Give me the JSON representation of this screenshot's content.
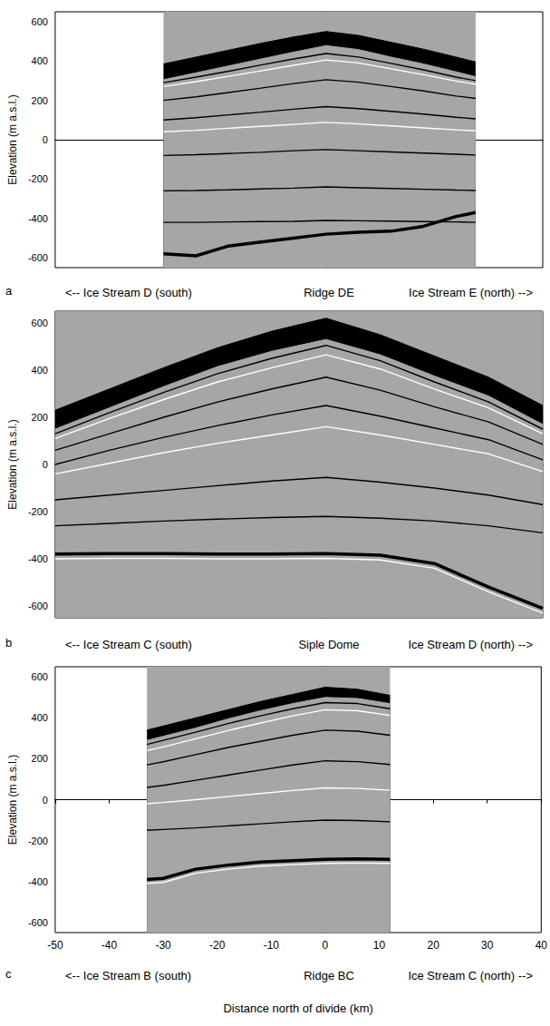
{
  "chart_data": [
    {
      "type": "line",
      "panel": "a",
      "ylabel": "Elevation (m a.s.l.)",
      "annotations": [
        "<-- Ice Stream D (south)",
        "Ridge DE",
        "Ice Stream E (north) -->"
      ],
      "xlim": [
        -50,
        40
      ],
      "ylim": [
        -650,
        650
      ],
      "yticks": [
        -600,
        -400,
        -200,
        0,
        200,
        400,
        600
      ],
      "tick_labels": "y",
      "grid": false,
      "x": [
        -30,
        -24,
        -18,
        -12,
        -6,
        0,
        6,
        12,
        18,
        24,
        27.6
      ],
      "series": [
        {
          "type": "area",
          "color": "#000000",
          "values": [
            385,
            420,
            455,
            490,
            522,
            550,
            530,
            495,
            460,
            420,
            395
          ]
        },
        {
          "type": "area",
          "color": "#a6a6a6",
          "values": [
            305,
            340,
            375,
            410,
            445,
            478,
            458,
            420,
            385,
            345,
            320
          ]
        },
        {
          "type": "line",
          "color": "#000000",
          "values": [
            290,
            318,
            348,
            380,
            410,
            438,
            420,
            388,
            355,
            318,
            300
          ]
        },
        {
          "type": "line",
          "color": "#ffffff",
          "values": [
            270,
            295,
            322,
            350,
            378,
            405,
            390,
            360,
            330,
            298,
            282
          ]
        },
        {
          "type": "line",
          "color": "#000000",
          "values": [
            200,
            218,
            240,
            262,
            285,
            305,
            292,
            270,
            248,
            222,
            210
          ]
        },
        {
          "type": "line",
          "color": "#000000",
          "values": [
            100,
            112,
            126,
            140,
            155,
            168,
            158,
            144,
            130,
            114,
            106
          ]
        },
        {
          "type": "line",
          "color": "#ffffff",
          "values": [
            40,
            48,
            58,
            68,
            78,
            88,
            80,
            70,
            60,
            50,
            45
          ]
        },
        {
          "type": "line",
          "color": "#000000",
          "values": [
            -80,
            -76,
            -70,
            -64,
            -56,
            -50,
            -56,
            -62,
            -68,
            -74,
            -78
          ]
        },
        {
          "type": "line",
          "color": "#000000",
          "values": [
            -260,
            -258,
            -255,
            -250,
            -246,
            -240,
            -244,
            -248,
            -252,
            -256,
            -258
          ]
        },
        {
          "type": "line",
          "color": "#000000",
          "values": [
            -420,
            -420,
            -418,
            -416,
            -415,
            -410,
            -412,
            -414,
            -416,
            -418,
            -420
          ]
        },
        {
          "type": "line",
          "color": "#000000",
          "line_style": "thick",
          "values": [
            -580,
            -590,
            -540,
            -520,
            -500,
            -480,
            -470,
            -465,
            -440,
            -390,
            -370
          ]
        }
      ]
    },
    {
      "type": "line",
      "panel": "b",
      "ylabel": "Elevation (m a.s.l.)",
      "annotations": [
        "<-- Ice Stream C (south)",
        "Siple Dome",
        "Ice Stream D (north) -->"
      ],
      "xlim": [
        -50,
        40
      ],
      "ylim": [
        -650,
        650
      ],
      "yticks": [
        -600,
        -400,
        -200,
        0,
        200,
        400,
        600
      ],
      "tick_labels": "y",
      "grid": false,
      "x": [
        -50,
        -40,
        -30,
        -20,
        -10,
        0,
        10,
        20,
        30,
        40
      ],
      "series": [
        {
          "type": "area",
          "color": "#000000",
          "values": [
            230,
            320,
            410,
            495,
            565,
            620,
            550,
            460,
            370,
            250
          ]
        },
        {
          "type": "area",
          "color": "#a6a6a6",
          "values": [
            150,
            240,
            330,
            415,
            480,
            530,
            465,
            375,
            290,
            170
          ]
        },
        {
          "type": "line",
          "color": "#000000",
          "values": [
            130,
            220,
            305,
            385,
            450,
            505,
            440,
            350,
            265,
            150
          ]
        },
        {
          "type": "line",
          "color": "#ffffff",
          "values": [
            110,
            195,
            275,
            350,
            410,
            465,
            405,
            320,
            240,
            130
          ]
        },
        {
          "type": "line",
          "color": "#000000",
          "values": [
            60,
            130,
            200,
            265,
            320,
            370,
            315,
            245,
            180,
            85
          ]
        },
        {
          "type": "line",
          "color": "#000000",
          "values": [
            0,
            60,
            115,
            165,
            210,
            250,
            205,
            155,
            105,
            20
          ]
        },
        {
          "type": "line",
          "color": "#ffffff",
          "values": [
            -40,
            5,
            50,
            90,
            125,
            160,
            125,
            85,
            45,
            -30
          ]
        },
        {
          "type": "line",
          "color": "#000000",
          "values": [
            -150,
            -130,
            -110,
            -90,
            -70,
            -55,
            -75,
            -100,
            -130,
            -170
          ]
        },
        {
          "type": "line",
          "color": "#000000",
          "values": [
            -260,
            -250,
            -240,
            -232,
            -225,
            -220,
            -228,
            -240,
            -260,
            -290
          ]
        },
        {
          "type": "line",
          "color": "#000000",
          "line_style": "thick",
          "values": [
            -380,
            -378,
            -378,
            -380,
            -380,
            -378,
            -385,
            -420,
            -520,
            -610
          ]
        },
        {
          "type": "line",
          "color": "#ffffff",
          "values": [
            -400,
            -398,
            -398,
            -400,
            -400,
            -398,
            -405,
            -440,
            -540,
            -630
          ]
        }
      ]
    },
    {
      "type": "line",
      "panel": "c",
      "ylabel": "Elevation (m a.s.l.)",
      "xlabel": "Distance north of divide (km)",
      "annotations": [
        "<-- Ice Stream B (south)",
        "Ridge BC",
        "Ice Stream C (north) -->"
      ],
      "xlim": [
        -50,
        40
      ],
      "xticks": [
        -50,
        -40,
        -30,
        -20,
        -10,
        0,
        10,
        20,
        30,
        40
      ],
      "ylim": [
        -650,
        650
      ],
      "yticks": [
        -600,
        -400,
        -200,
        0,
        200,
        400,
        600
      ],
      "grid": false,
      "x": [
        -33,
        -30,
        -24,
        -18,
        -12,
        -6,
        0,
        6,
        12
      ],
      "series": [
        {
          "type": "area",
          "color": "#000000",
          "values": [
            340,
            360,
            400,
            440,
            480,
            515,
            550,
            540,
            510
          ]
        },
        {
          "type": "area",
          "color": "#a6a6a6",
          "values": [
            290,
            310,
            350,
            395,
            435,
            470,
            500,
            495,
            470
          ]
        },
        {
          "type": "line",
          "color": "#000000",
          "values": [
            270,
            290,
            330,
            372,
            410,
            445,
            475,
            470,
            445
          ]
        },
        {
          "type": "line",
          "color": "#ffffff",
          "values": [
            240,
            258,
            298,
            338,
            375,
            410,
            440,
            435,
            412
          ]
        },
        {
          "type": "line",
          "color": "#000000",
          "values": [
            170,
            185,
            220,
            255,
            285,
            315,
            340,
            335,
            315
          ]
        },
        {
          "type": "line",
          "color": "#000000",
          "values": [
            60,
            70,
            95,
            120,
            145,
            170,
            190,
            186,
            172
          ]
        },
        {
          "type": "line",
          "color": "#ffffff",
          "values": [
            -20,
            -14,
            0,
            15,
            30,
            45,
            58,
            55,
            46
          ]
        },
        {
          "type": "line",
          "color": "#000000",
          "values": [
            -150,
            -146,
            -138,
            -128,
            -118,
            -108,
            -100,
            -102,
            -108
          ]
        },
        {
          "type": "line",
          "color": "#000000",
          "line_style": "thick",
          "values": [
            -390,
            -385,
            -340,
            -320,
            -305,
            -298,
            -292,
            -290,
            -292
          ]
        },
        {
          "type": "line",
          "color": "#ffffff",
          "values": [
            -410,
            -405,
            -360,
            -340,
            -325,
            -318,
            -312,
            -310,
            -312
          ]
        }
      ]
    }
  ]
}
